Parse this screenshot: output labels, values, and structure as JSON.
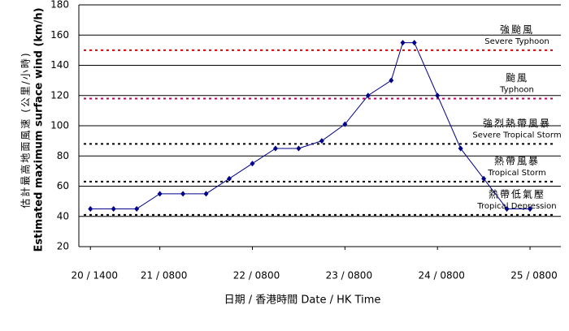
{
  "chart_data": {
    "type": "line",
    "y_label_zh": "估計最高地面風速 (公里/小時)",
    "y_label_en": "Estimated maximum surface wind (km/h)",
    "x_label": "日期 / 香港時間 Date / HK Time",
    "x": [
      0,
      6,
      12,
      18,
      24,
      30,
      36,
      42,
      48,
      54,
      60,
      66,
      72,
      78,
      81,
      84,
      90,
      96,
      102,
      108,
      114
    ],
    "series": [
      {
        "name": "Estimated maximum surface wind",
        "color": "#00008b",
        "values": [
          45,
          45,
          45,
          55,
          55,
          55,
          65,
          75,
          85,
          85,
          90,
          101,
          120,
          130,
          155,
          155,
          120,
          85,
          65,
          45,
          45
        ]
      }
    ],
    "xlim": [
      -3,
      122
    ],
    "xticks": [
      {
        "value": 0,
        "label": "20 / 1400"
      },
      {
        "value": 18,
        "label": "21 / 0800"
      },
      {
        "value": 42,
        "label": "22 / 0800"
      },
      {
        "value": 66,
        "label": "23 / 0800"
      },
      {
        "value": 90,
        "label": "24 / 0800"
      },
      {
        "value": 114,
        "label": "25 / 0800"
      }
    ],
    "ylim": [
      20,
      180
    ],
    "yticks": [
      20,
      40,
      60,
      80,
      100,
      120,
      140,
      160,
      180
    ],
    "grid": true,
    "thresholds": [
      {
        "value": 150,
        "color": "#e00000",
        "label_zh": "強颱風",
        "label_en": "Severe Typhoon"
      },
      {
        "value": 118,
        "color": "#c00060",
        "label_zh": "颱風",
        "label_en": "Typhoon"
      },
      {
        "value": 88,
        "color": "#000000",
        "label_zh": "強烈熱帶風暴",
        "label_en": "Severe Tropical Storm"
      },
      {
        "value": 63,
        "color": "#000000",
        "label_zh": "熱帶風暴",
        "label_en": "Tropical Storm"
      },
      {
        "value": 41,
        "color": "#000000",
        "label_zh": "熱帶低氣壓",
        "label_en": "Tropical Depression"
      }
    ]
  }
}
